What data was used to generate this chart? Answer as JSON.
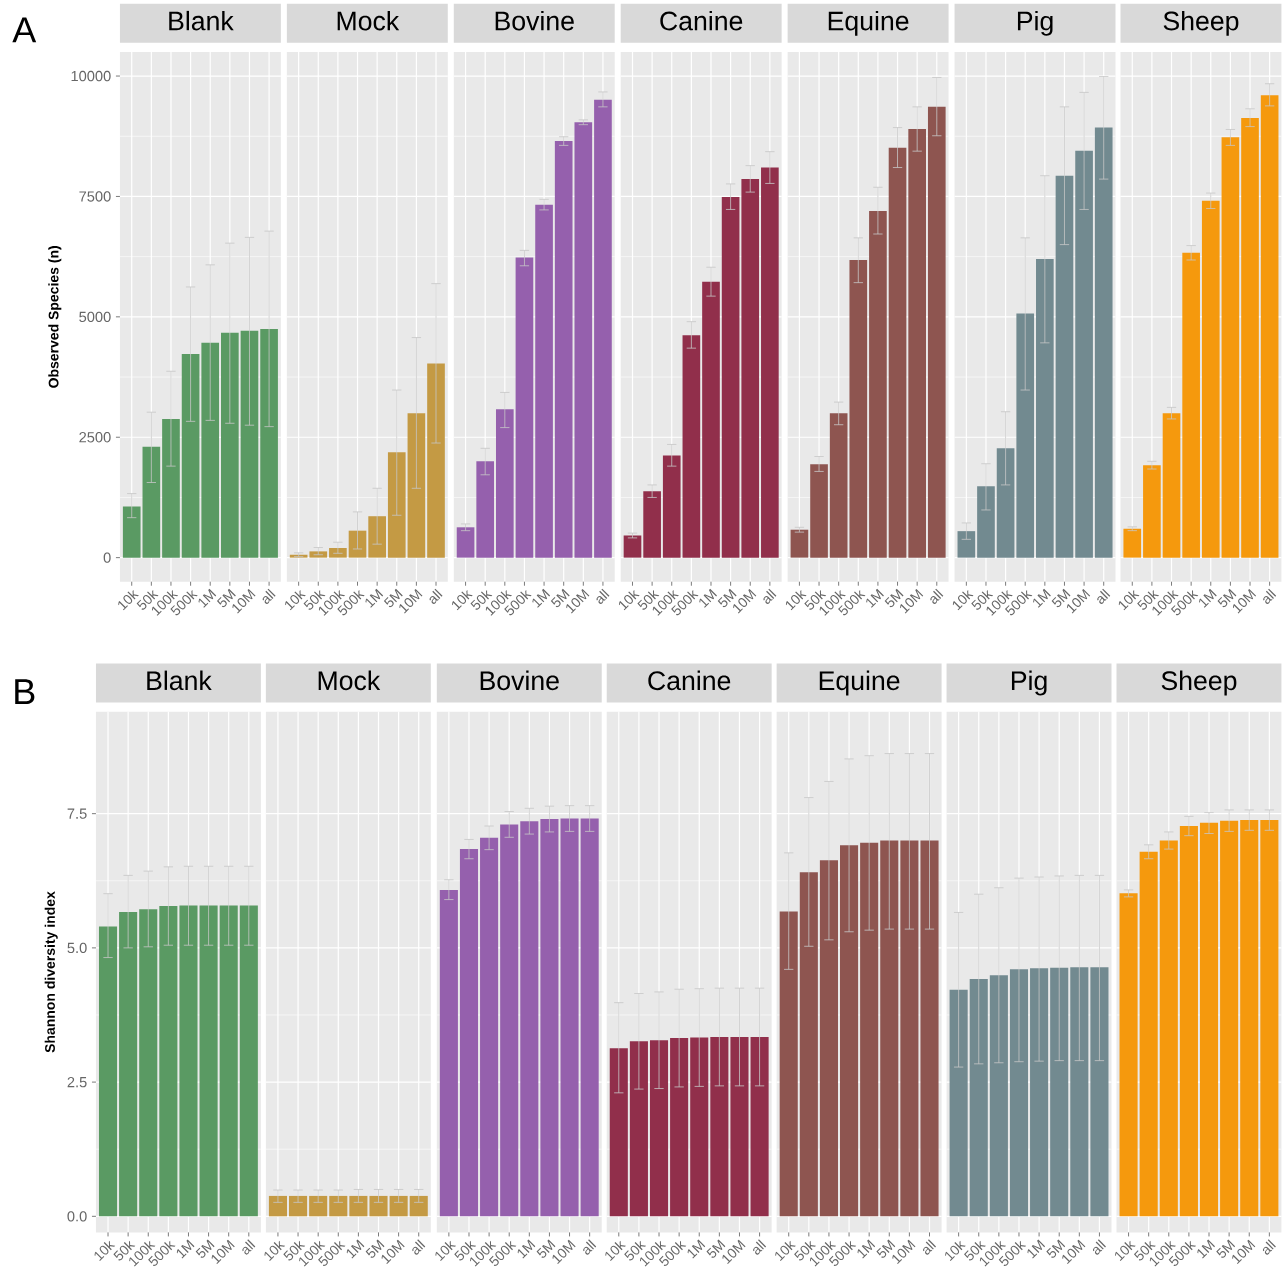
{
  "chart_data": [
    {
      "type": "bar",
      "title": "Blank",
      "ylabel": "Observed Species (n)",
      "annotations": [
        "A"
      ],
      "categories": [
        "10k",
        "50k",
        "100k",
        "500k",
        "1M",
        "5M",
        "10M",
        "all"
      ],
      "values": [
        1060,
        2300,
        2880,
        4230,
        4460,
        4670,
        4710,
        4750
      ],
      "errors": [
        [
          830,
          1330
        ],
        [
          1560,
          3020
        ],
        [
          1900,
          3870
        ],
        [
          2830,
          5620
        ],
        [
          2850,
          6080
        ],
        [
          2790,
          6530
        ],
        [
          2750,
          6650
        ],
        [
          2720,
          6780
        ]
      ],
      "color": "#5a9a63",
      "ylim": [
        -500,
        10500
      ],
      "yticks": [
        0,
        2500,
        5000,
        7500,
        10000
      ],
      "grid": true
    },
    {
      "type": "bar",
      "title": "Mock",
      "tick_labels": "x",
      "categories": [
        "10k",
        "50k",
        "100k",
        "500k",
        "1M",
        "5M",
        "10M",
        "all"
      ],
      "values": [
        60,
        130,
        200,
        560,
        860,
        2190,
        3000,
        4030
      ],
      "errors": [
        [
          20,
          100
        ],
        [
          60,
          210
        ],
        [
          90,
          320
        ],
        [
          180,
          950
        ],
        [
          280,
          1440
        ],
        [
          880,
          3480
        ],
        [
          1440,
          4570
        ],
        [
          2380,
          5690
        ]
      ],
      "color": "#c49a44",
      "ylim": [
        -500,
        10500
      ],
      "yticks": [
        0,
        2500,
        5000,
        7500,
        10000
      ],
      "grid": true
    },
    {
      "type": "bar",
      "title": "Bovine",
      "tick_labels": "x",
      "categories": [
        "10k",
        "50k",
        "100k",
        "500k",
        "1M",
        "5M",
        "10M",
        "all"
      ],
      "values": [
        630,
        2000,
        3080,
        6230,
        7330,
        8650,
        9040,
        9510
      ],
      "errors": [
        [
          560,
          700
        ],
        [
          1720,
          2270
        ],
        [
          2700,
          3430
        ],
        [
          6060,
          6380
        ],
        [
          7220,
          7440
        ],
        [
          8560,
          8740
        ],
        [
          8990,
          9090
        ],
        [
          9360,
          9670
        ]
      ],
      "color": "#9560ad",
      "ylim": [
        -500,
        10500
      ],
      "yticks": [
        0,
        2500,
        5000,
        7500,
        10000
      ],
      "grid": true
    },
    {
      "type": "bar",
      "title": "Canine",
      "tick_labels": "x",
      "categories": [
        "10k",
        "50k",
        "100k",
        "500k",
        "1M",
        "5M",
        "10M",
        "all"
      ],
      "values": [
        460,
        1380,
        2120,
        4620,
        5730,
        7490,
        7860,
        8100
      ],
      "errors": [
        [
          410,
          510
        ],
        [
          1250,
          1510
        ],
        [
          1900,
          2350
        ],
        [
          4350,
          4900
        ],
        [
          5430,
          6030
        ],
        [
          7230,
          7760
        ],
        [
          7590,
          8140
        ],
        [
          7770,
          8430
        ]
      ],
      "color": "#912f4b",
      "ylim": [
        -500,
        10500
      ],
      "yticks": [
        0,
        2500,
        5000,
        7500,
        10000
      ],
      "grid": true
    },
    {
      "type": "bar",
      "title": "Equine",
      "tick_labels": "x",
      "categories": [
        "10k",
        "50k",
        "100k",
        "500k",
        "1M",
        "5M",
        "10M",
        "all"
      ],
      "values": [
        580,
        1940,
        3000,
        6180,
        7200,
        8510,
        8900,
        9360
      ],
      "errors": [
        [
          530,
          630
        ],
        [
          1790,
          2100
        ],
        [
          2760,
          3230
        ],
        [
          5710,
          6640
        ],
        [
          6720,
          7690
        ],
        [
          8100,
          8930
        ],
        [
          8440,
          9360
        ],
        [
          8760,
          9970
        ]
      ],
      "color": "#8e5550",
      "ylim": [
        -500,
        10500
      ],
      "yticks": [
        0,
        2500,
        5000,
        7500,
        10000
      ],
      "grid": true
    },
    {
      "type": "bar",
      "title": "Pig",
      "tick_labels": "x",
      "categories": [
        "10k",
        "50k",
        "100k",
        "500k",
        "1M",
        "5M",
        "10M",
        "all"
      ],
      "values": [
        550,
        1480,
        2270,
        5070,
        6200,
        7930,
        8450,
        8930
      ],
      "errors": [
        [
          380,
          720
        ],
        [
          990,
          1950
        ],
        [
          1510,
          3030
        ],
        [
          3480,
          6640
        ],
        [
          4460,
          7930
        ],
        [
          6500,
          9360
        ],
        [
          7230,
          9660
        ],
        [
          7860,
          9990
        ]
      ],
      "color": "#728a90",
      "ylim": [
        -500,
        10500
      ],
      "yticks": [
        0,
        2500,
        5000,
        7500,
        10000
      ],
      "grid": true
    },
    {
      "type": "bar",
      "title": "Sheep",
      "tick_labels": "x",
      "categories": [
        "10k",
        "50k",
        "100k",
        "500k",
        "1M",
        "5M",
        "10M",
        "all"
      ],
      "values": [
        600,
        1920,
        3000,
        6330,
        7410,
        8730,
        9130,
        9600
      ],
      "errors": [
        [
          560,
          640
        ],
        [
          1840,
          2000
        ],
        [
          2880,
          3120
        ],
        [
          6180,
          6480
        ],
        [
          7250,
          7570
        ],
        [
          8560,
          8890
        ],
        [
          8950,
          9320
        ],
        [
          9380,
          9840
        ]
      ],
      "color": "#f5990d",
      "ylim": [
        -500,
        10500
      ],
      "yticks": [
        0,
        2500,
        5000,
        7500,
        10000
      ],
      "grid": true
    },
    {
      "type": "bar",
      "title": "Blank",
      "ylabel": "Shannon diversity index",
      "annotations": [
        "B"
      ],
      "categories": [
        "10k",
        "50k",
        "100k",
        "500k",
        "1M",
        "5M",
        "10M",
        "all"
      ],
      "values": [
        5.4,
        5.67,
        5.72,
        5.78,
        5.79,
        5.79,
        5.79,
        5.79
      ],
      "errors": [
        [
          4.82,
          6.01
        ],
        [
          5.0,
          6.35
        ],
        [
          5.02,
          6.43
        ],
        [
          5.05,
          6.51
        ],
        [
          5.05,
          6.52
        ],
        [
          5.05,
          6.52
        ],
        [
          5.05,
          6.52
        ],
        [
          5.05,
          6.52
        ]
      ],
      "color": "#5a9a63",
      "ylim": [
        -0.3,
        9.4
      ],
      "yticks": [
        {
          "value": 0,
          "label": "0.0"
        },
        {
          "value": 2.5,
          "label": "2.5"
        },
        {
          "value": 5,
          "label": "5.0"
        },
        {
          "value": 7.5,
          "label": "7.5"
        }
      ],
      "grid": true
    },
    {
      "type": "bar",
      "title": "Mock",
      "tick_labels": "x",
      "categories": [
        "10k",
        "50k",
        "100k",
        "500k",
        "1M",
        "5M",
        "10M",
        "all"
      ],
      "values": [
        0.38,
        0.38,
        0.38,
        0.38,
        0.38,
        0.38,
        0.38,
        0.38
      ],
      "errors": [
        [
          0.26,
          0.49
        ],
        [
          0.26,
          0.49
        ],
        [
          0.26,
          0.49
        ],
        [
          0.26,
          0.49
        ],
        [
          0.26,
          0.5
        ],
        [
          0.26,
          0.5
        ],
        [
          0.26,
          0.5
        ],
        [
          0.26,
          0.5
        ]
      ],
      "color": "#c49a44",
      "ylim": [
        -0.3,
        9.4
      ],
      "yticks": [
        0,
        2.5,
        5,
        7.5
      ],
      "grid": true
    },
    {
      "type": "bar",
      "title": "Bovine",
      "tick_labels": "x",
      "categories": [
        "10k",
        "50k",
        "100k",
        "500k",
        "1M",
        "5M",
        "10M",
        "all"
      ],
      "values": [
        6.08,
        6.84,
        7.05,
        7.3,
        7.36,
        7.4,
        7.41,
        7.41
      ],
      "errors": [
        [
          5.9,
          6.27
        ],
        [
          6.66,
          7.02
        ],
        [
          6.83,
          7.27
        ],
        [
          7.06,
          7.54
        ],
        [
          7.12,
          7.6
        ],
        [
          7.16,
          7.64
        ],
        [
          7.17,
          7.65
        ],
        [
          7.17,
          7.65
        ]
      ],
      "color": "#9560ad",
      "ylim": [
        -0.3,
        9.4
      ],
      "yticks": [
        0,
        2.5,
        5,
        7.5
      ],
      "grid": true
    },
    {
      "type": "bar",
      "title": "Canine",
      "tick_labels": "x",
      "categories": [
        "10k",
        "50k",
        "100k",
        "500k",
        "1M",
        "5M",
        "10M",
        "all"
      ],
      "values": [
        3.13,
        3.26,
        3.28,
        3.32,
        3.33,
        3.34,
        3.34,
        3.34
      ],
      "errors": [
        [
          2.3,
          3.98
        ],
        [
          2.37,
          4.15
        ],
        [
          2.38,
          4.18
        ],
        [
          2.41,
          4.23
        ],
        [
          2.42,
          4.24
        ],
        [
          2.43,
          4.25
        ],
        [
          2.43,
          4.25
        ],
        [
          2.43,
          4.25
        ]
      ],
      "color": "#912f4b",
      "ylim": [
        -0.3,
        9.4
      ],
      "yticks": [
        0,
        2.5,
        5,
        7.5
      ],
      "grid": true
    },
    {
      "type": "bar",
      "title": "Equine",
      "tick_labels": "x",
      "categories": [
        "10k",
        "50k",
        "100k",
        "500k",
        "1M",
        "5M",
        "10M",
        "all"
      ],
      "values": [
        5.68,
        6.41,
        6.63,
        6.91,
        6.96,
        7.0,
        7.0,
        7.0
      ],
      "errors": [
        [
          4.6,
          6.77
        ],
        [
          5.03,
          7.8
        ],
        [
          5.15,
          8.1
        ],
        [
          5.3,
          8.52
        ],
        [
          5.33,
          8.58
        ],
        [
          5.35,
          8.62
        ],
        [
          5.35,
          8.62
        ],
        [
          5.35,
          8.62
        ]
      ],
      "color": "#8e5550",
      "ylim": [
        -0.3,
        9.4
      ],
      "yticks": [
        0,
        2.5,
        5,
        7.5
      ],
      "grid": true
    },
    {
      "type": "bar",
      "title": "Pig",
      "tick_labels": "x",
      "categories": [
        "10k",
        "50k",
        "100k",
        "500k",
        "1M",
        "5M",
        "10M",
        "all"
      ],
      "values": [
        4.22,
        4.42,
        4.49,
        4.6,
        4.62,
        4.63,
        4.64,
        4.64
      ],
      "errors": [
        [
          2.78,
          5.66
        ],
        [
          2.84,
          6.0
        ],
        [
          2.86,
          6.12
        ],
        [
          2.88,
          6.3
        ],
        [
          2.89,
          6.32
        ],
        [
          2.9,
          6.34
        ],
        [
          2.9,
          6.35
        ],
        [
          2.9,
          6.35
        ]
      ],
      "color": "#728a90",
      "ylim": [
        -0.3,
        9.4
      ],
      "yticks": [
        0,
        2.5,
        5,
        7.5
      ],
      "grid": true
    },
    {
      "type": "bar",
      "title": "Sheep",
      "tick_labels": "x",
      "categories": [
        "10k",
        "50k",
        "100k",
        "500k",
        "1M",
        "5M",
        "10M",
        "all"
      ],
      "values": [
        6.02,
        6.79,
        7.0,
        7.27,
        7.33,
        7.37,
        7.38,
        7.38
      ],
      "errors": [
        [
          5.95,
          6.08
        ],
        [
          6.66,
          6.92
        ],
        [
          6.84,
          7.16
        ],
        [
          7.09,
          7.45
        ],
        [
          7.13,
          7.52
        ],
        [
          7.17,
          7.57
        ],
        [
          7.19,
          7.57
        ],
        [
          7.19,
          7.57
        ]
      ],
      "color": "#f5990d",
      "ylim": [
        -0.3,
        9.4
      ],
      "yticks": [
        0,
        2.5,
        5,
        7.5
      ],
      "grid": true
    }
  ]
}
